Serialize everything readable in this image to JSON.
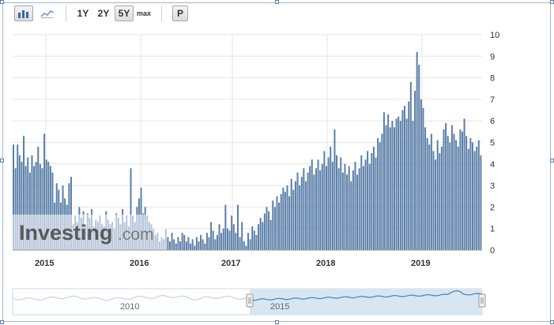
{
  "toolbar": {
    "chart_type_bar": "bar-chart-icon",
    "chart_type_line": "line-chart-icon",
    "ranges": [
      "1Y",
      "2Y",
      "5Y",
      "max"
    ],
    "selected_range": "5Y",
    "p_button": "P"
  },
  "watermark": {
    "brand": "Investing",
    "suffix": ".com"
  },
  "colors": {
    "bar": "#5b7fa9",
    "bar_light": "#b9c9dc",
    "grid": "#e6e6e6",
    "nav_fill": "#d7e6f3",
    "nav_line": "#4f7fb0"
  },
  "chart_data": {
    "type": "bar",
    "x_tick_labels": [
      "2015",
      "2016",
      "2017",
      "2018",
      "2019"
    ],
    "y_tick_labels": [
      "0",
      "1",
      "2",
      "3",
      "4",
      "5",
      "6",
      "7",
      "8",
      "9",
      "10"
    ],
    "ylim": [
      0,
      10
    ],
    "grid": true,
    "values": [
      4.9,
      3.8,
      4.9,
      4.4,
      4.1,
      5.3,
      3.9,
      4.3,
      3.6,
      4.4,
      3.9,
      4.1,
      4.8,
      4.0,
      3.8,
      5.4,
      4.2,
      4.1,
      3.9,
      3.6,
      2.2,
      3.1,
      2.8,
      2.2,
      3.0,
      2.4,
      2.1,
      3.1,
      3.4,
      1.2,
      1.6,
      1.3,
      2.0,
      1.5,
      1.8,
      1.2,
      1.7,
      1.5,
      1.9,
      1.1,
      1.4,
      1.3,
      1.6,
      1.2,
      1.1,
      1.8,
      1.4,
      1.2,
      1.3,
      1.0,
      1.7,
      1.5,
      1.2,
      1.9,
      1.3,
      1.6,
      1.1,
      3.8,
      1.6,
      1.3,
      2.0,
      2.4,
      2.9,
      1.7,
      2.0,
      1.6,
      1.3,
      1.2,
      1.0,
      0.7,
      0.8,
      0.4,
      0.6,
      0.5,
      1.0,
      0.6,
      0.4,
      0.8,
      0.5,
      0.3,
      0.6,
      0.4,
      0.8,
      0.7,
      0.4,
      0.6,
      0.3,
      0.5,
      0.2,
      0.6,
      0.4,
      0.7,
      0.5,
      0.3,
      0.8,
      0.6,
      1.3,
      0.9,
      0.5,
      0.7,
      1.2,
      0.8,
      1.0,
      2.1,
      1.0,
      0.9,
      1.6,
      1.2,
      0.8,
      2.1,
      0.6,
      1.3,
      0.4,
      0.2,
      0.8,
      0.5,
      1.1,
      0.9,
      0.7,
      1.2,
      1.5,
      1.3,
      1.7,
      2.0,
      1.8,
      1.4,
      2.3,
      2.0,
      2.5,
      2.2,
      2.6,
      2.9,
      2.7,
      3.0,
      2.5,
      3.3,
      2.8,
      3.2,
      3.6,
      3.0,
      3.4,
      3.8,
      3.2,
      3.6,
      3.9,
      4.2,
      3.5,
      3.8,
      4.2,
      3.7,
      4.0,
      4.6,
      3.9,
      4.3,
      4.8,
      4.1,
      5.6,
      4.4,
      3.8,
      4.3,
      3.6,
      4.0,
      3.5,
      3.9,
      3.2,
      3.7,
      4.1,
      3.5,
      3.8,
      4.4,
      3.9,
      4.2,
      4.6,
      4.0,
      4.5,
      4.8,
      4.3,
      5.2,
      5.0,
      5.4,
      6.4,
      5.8,
      6.3,
      5.7,
      6.0,
      5.7,
      6.1,
      6.2,
      6.0,
      6.5,
      6.7,
      6.1,
      6.9,
      7.8,
      6.0,
      7.4,
      9.2,
      8.6,
      7.0,
      6.6,
      5.7,
      5.2,
      4.9,
      5.4,
      4.6,
      4.2,
      5.1,
      4.5,
      4.8,
      5.6,
      5.9,
      5.3,
      5.0,
      5.8,
      5.4,
      5.1,
      4.8,
      5.6,
      5.5,
      6.1,
      5.3,
      4.7,
      5.2,
      5.0,
      4.6,
      4.8,
      5.1,
      4.4
    ]
  },
  "navigator": {
    "labels": [
      "2010",
      "2015"
    ]
  }
}
